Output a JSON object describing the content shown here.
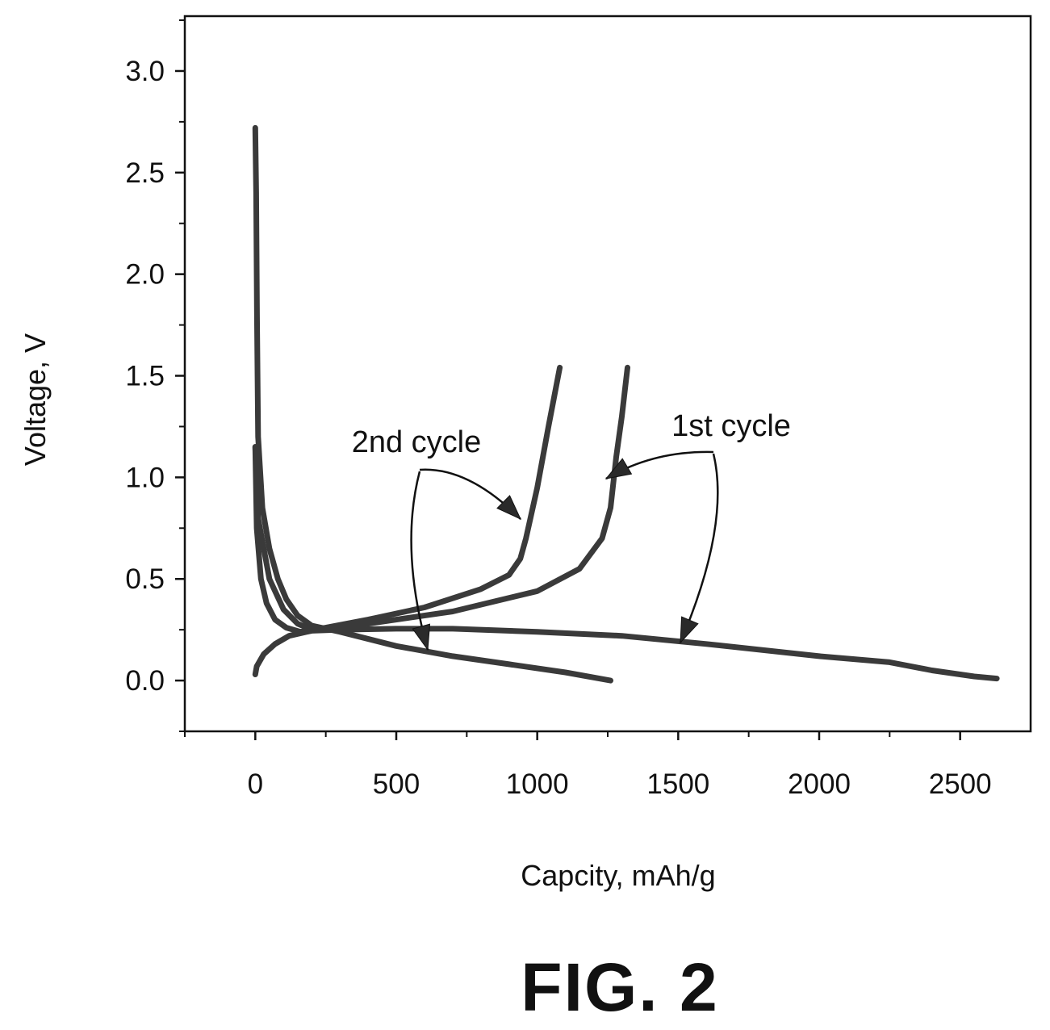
{
  "figure_label": "FIG. 2",
  "chart_data": {
    "type": "line",
    "title": "",
    "xlabel": "Capcity, mAh/g",
    "ylabel": "Voltage, V",
    "xlim": [
      -250,
      2750
    ],
    "ylim": [
      -0.25,
      3.27
    ],
    "x_ticks": [
      "0",
      "500",
      "1000",
      "1500",
      "2000",
      "2500"
    ],
    "y_ticks": [
      "0.0",
      "0.5",
      "1.0",
      "1.5",
      "2.0",
      "2.5",
      "3.0"
    ],
    "grid": false,
    "series": [
      {
        "values": [
          [
            0,
            2.72
          ],
          [
            3,
            2.4
          ],
          [
            6,
            1.8
          ],
          [
            10,
            1.2
          ],
          [
            25,
            0.85
          ],
          [
            50,
            0.65
          ],
          [
            80,
            0.5
          ],
          [
            110,
            0.4
          ],
          [
            150,
            0.32
          ],
          [
            200,
            0.27
          ],
          [
            300,
            0.24
          ],
          [
            500,
            0.17
          ],
          [
            700,
            0.12
          ],
          [
            900,
            0.08
          ],
          [
            1100,
            0.04
          ],
          [
            1260,
            0.0
          ]
        ]
      },
      {
        "values": [
          [
            0,
            0.03
          ],
          [
            5,
            0.07
          ],
          [
            30,
            0.13
          ],
          [
            70,
            0.18
          ],
          [
            120,
            0.22
          ],
          [
            200,
            0.245
          ],
          [
            300,
            0.25
          ],
          [
            500,
            0.255
          ],
          [
            700,
            0.255
          ],
          [
            1000,
            0.24
          ],
          [
            1300,
            0.22
          ],
          [
            1600,
            0.18
          ],
          [
            2000,
            0.12
          ],
          [
            2250,
            0.09
          ],
          [
            2400,
            0.05
          ],
          [
            2550,
            0.02
          ],
          [
            2630,
            0.01
          ]
        ]
      },
      {
        "values": [
          [
            0,
            1.15
          ],
          [
            5,
            0.75
          ],
          [
            20,
            0.5
          ],
          [
            40,
            0.38
          ],
          [
            70,
            0.3
          ],
          [
            110,
            0.26
          ],
          [
            160,
            0.24
          ],
          [
            250,
            0.26
          ],
          [
            400,
            0.3
          ],
          [
            600,
            0.36
          ],
          [
            800,
            0.45
          ],
          [
            900,
            0.52
          ],
          [
            940,
            0.6
          ],
          [
            960,
            0.7
          ],
          [
            1000,
            0.95
          ],
          [
            1040,
            1.25
          ],
          [
            1080,
            1.54
          ]
        ]
      },
      {
        "values": [
          [
            0,
            1.15
          ],
          [
            10,
            0.8
          ],
          [
            50,
            0.5
          ],
          [
            100,
            0.35
          ],
          [
            150,
            0.28
          ],
          [
            200,
            0.25
          ],
          [
            400,
            0.28
          ],
          [
            700,
            0.34
          ],
          [
            1000,
            0.44
          ],
          [
            1150,
            0.55
          ],
          [
            1230,
            0.7
          ],
          [
            1260,
            0.85
          ],
          [
            1280,
            1.1
          ],
          [
            1300,
            1.3
          ],
          [
            1320,
            1.54
          ]
        ]
      }
    ],
    "annotations": [
      {
        "text": "1st cycle",
        "x": 1600,
        "y": 1.25
      },
      {
        "text": "2nd cycle",
        "x": 580,
        "y": 1.19
      }
    ]
  }
}
